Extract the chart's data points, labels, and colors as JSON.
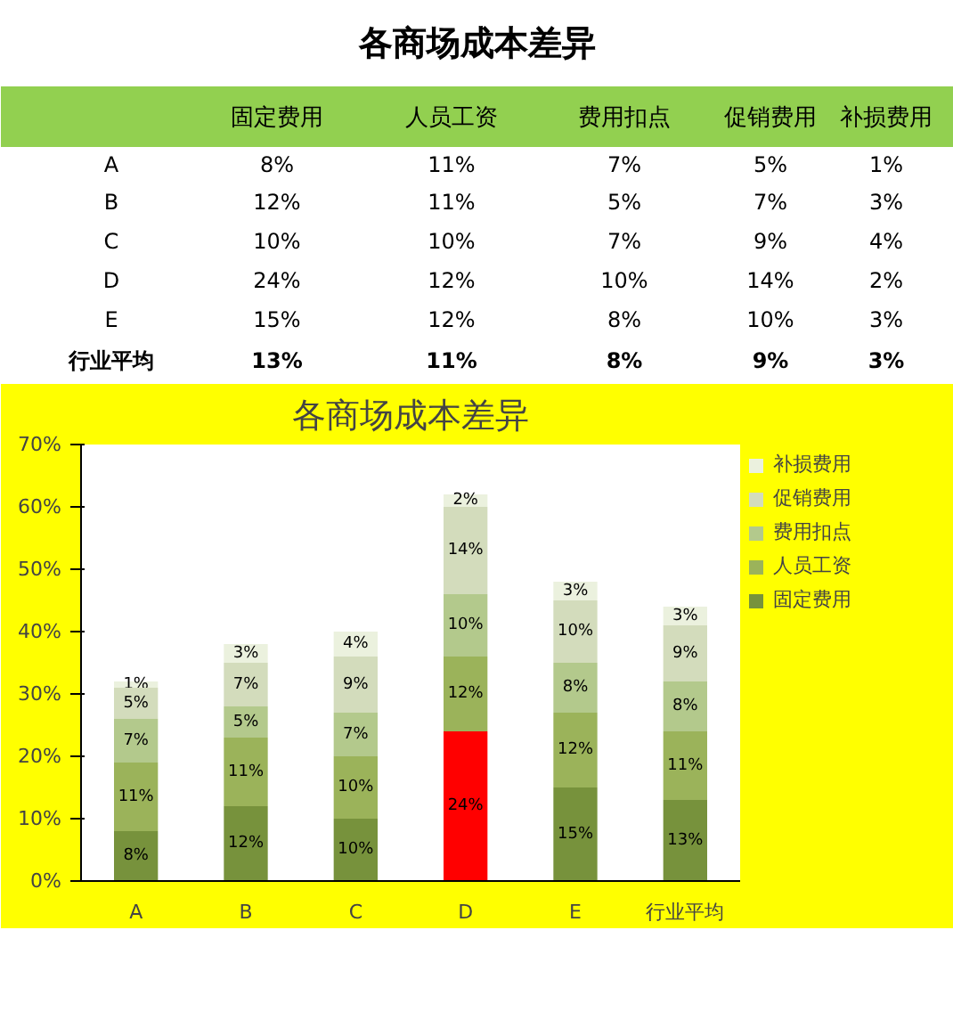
{
  "chart_data": {
    "type": "bar",
    "title": "各商场成本差异",
    "subtitle": "各商场成本差异",
    "stacked": true,
    "legend": "right",
    "grid": false,
    "categories": [
      "A",
      "B",
      "C",
      "D",
      "E",
      "行业平均"
    ],
    "ylim": [
      0,
      70
    ],
    "yticks": [
      {
        "value": 0,
        "label": "0%"
      },
      {
        "value": 10,
        "label": "10%"
      },
      {
        "value": 20,
        "label": "20%"
      },
      {
        "value": 30,
        "label": "30%"
      },
      {
        "value": 40,
        "label": "40%"
      },
      {
        "value": 50,
        "label": "50%"
      },
      {
        "value": 60,
        "label": "60%"
      },
      {
        "value": 70,
        "label": "70%"
      }
    ],
    "series": [
      {
        "name": "固定费用",
        "colors": [
          "#77923c",
          "#77923c",
          "#77923c",
          "#ff0000",
          "#77923c",
          "#77923c"
        ],
        "values": [
          8,
          12,
          10,
          24,
          15,
          13
        ],
        "value_labels": [
          "8%",
          "12%",
          "10%",
          "24%",
          "15%",
          "13%"
        ]
      },
      {
        "name": "人员工资",
        "color": "#9bb35a",
        "values": [
          11,
          11,
          10,
          12,
          12,
          11
        ],
        "value_labels": [
          "11%",
          "11%",
          "10%",
          "12%",
          "12%",
          "11%"
        ]
      },
      {
        "name": "费用扣点",
        "color": "#b3c98c",
        "values": [
          7,
          5,
          7,
          10,
          8,
          8
        ],
        "value_labels": [
          "7%",
          "5%",
          "7%",
          "10%",
          "8%",
          "8%"
        ]
      },
      {
        "name": "促销费用",
        "color": "#d3dcbc",
        "values": [
          5,
          7,
          9,
          14,
          10,
          9
        ],
        "value_labels": [
          "5%",
          "7%",
          "9%",
          "14%",
          "10%",
          "9%"
        ]
      },
      {
        "name": "补损费用",
        "color": "#ebf1de",
        "values": [
          1,
          3,
          4,
          2,
          3,
          3
        ],
        "value_labels": [
          "1%",
          "3%",
          "4%",
          "2%",
          "3%",
          "3%"
        ]
      }
    ]
  }
}
